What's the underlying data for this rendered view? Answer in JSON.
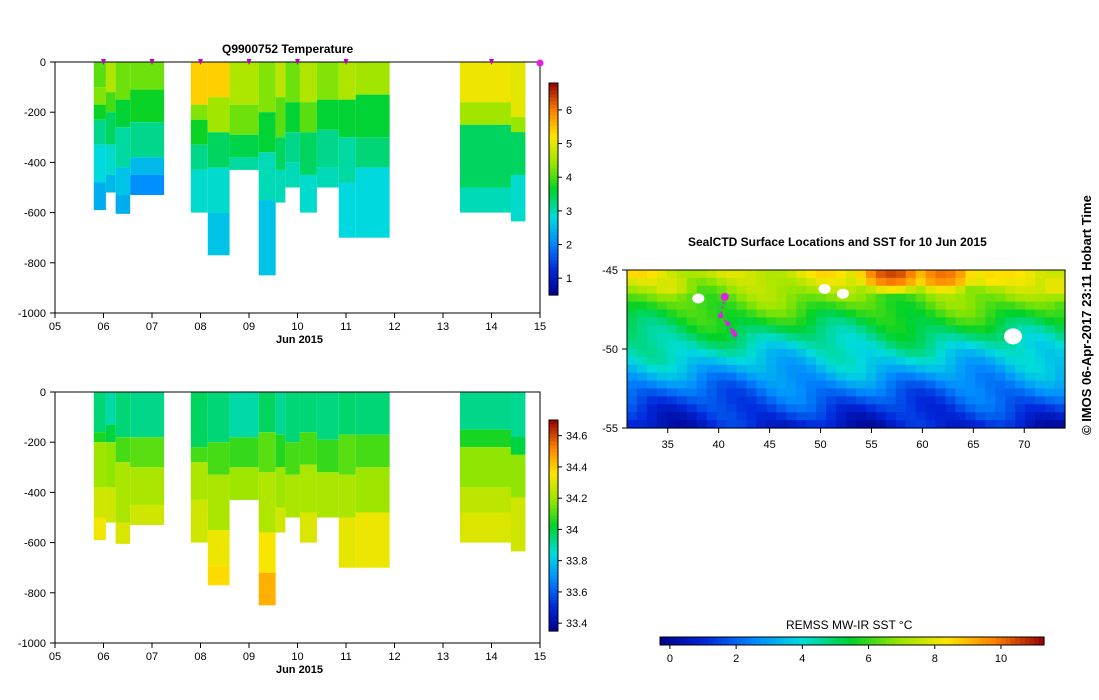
{
  "figure": {
    "credit": "© IMOS 06-Apr-2017 23:11 Hobart Time"
  },
  "chart_data": [
    {
      "type": "heatmap",
      "id": "temperature-section",
      "title": "Q9900752  Temperature",
      "xlabel": "Jun 2015",
      "ylabel": "",
      "x_ticks": [
        "05",
        "06",
        "07",
        "08",
        "09",
        "10",
        "11",
        "12",
        "13",
        "14",
        "15"
      ],
      "xlim": [
        5,
        15
      ],
      "ylim": [
        -1000,
        0
      ],
      "y_ticks": [
        0,
        -200,
        -400,
        -600,
        -800,
        -1000
      ],
      "colorbar": {
        "range": [
          0.5,
          6.8
        ],
        "ticks": [
          1,
          2,
          3,
          4,
          5,
          6
        ],
        "colormap": "jet"
      },
      "profile_markers": [
        6.0,
        7.0,
        8.0,
        9.0,
        10.0,
        11.0,
        14.0,
        15.0
      ],
      "profiles": [
        {
          "x0": 5.8,
          "x1": 6.05,
          "depth": 590,
          "bands": [
            [
              0,
              4.1
            ],
            [
              100,
              4.3
            ],
            [
              170,
              3.7
            ],
            [
              230,
              3.2
            ],
            [
              330,
              2.8
            ],
            [
              480,
              2.4
            ]
          ]
        },
        {
          "x0": 6.05,
          "x1": 6.25,
          "depth": 520,
          "bands": [
            [
              0,
              4.6
            ],
            [
              120,
              4.0
            ],
            [
              200,
              3.4
            ],
            [
              330,
              2.9
            ],
            [
              450,
              2.5
            ]
          ]
        },
        {
          "x0": 6.25,
          "x1": 6.55,
          "depth": 605,
          "bands": [
            [
              0,
              4.2
            ],
            [
              150,
              3.6
            ],
            [
              260,
              3.1
            ],
            [
              420,
              2.6
            ],
            [
              530,
              2.4
            ]
          ]
        },
        {
          "x0": 6.55,
          "x1": 7.25,
          "depth": 530,
          "bands": [
            [
              0,
              4.2
            ],
            [
              110,
              3.7
            ],
            [
              240,
              3.2
            ],
            [
              380,
              2.5
            ],
            [
              450,
              2.1
            ]
          ]
        },
        {
          "x0": 7.8,
          "x1": 8.15,
          "depth": 600,
          "bands": [
            [
              0,
              5.4
            ],
            [
              170,
              4.3
            ],
            [
              230,
              3.7
            ],
            [
              330,
              3.2
            ],
            [
              430,
              2.9
            ]
          ]
        },
        {
          "x0": 8.15,
          "x1": 8.6,
          "depth": 770,
          "bands": [
            [
              0,
              5.4
            ],
            [
              140,
              4.5
            ],
            [
              280,
              3.4
            ],
            [
              420,
              2.9
            ],
            [
              600,
              2.6
            ]
          ]
        },
        {
          "x0": 8.6,
          "x1": 9.2,
          "depth": 430,
          "bands": [
            [
              0,
              4.6
            ],
            [
              170,
              4.2
            ],
            [
              290,
              3.5
            ],
            [
              380,
              3.1
            ]
          ]
        },
        {
          "x0": 9.2,
          "x1": 9.55,
          "depth": 850,
          "bands": [
            [
              0,
              4.3
            ],
            [
              200,
              3.6
            ],
            [
              360,
              3.0
            ],
            [
              550,
              2.6
            ]
          ]
        },
        {
          "x0": 9.55,
          "x1": 9.75,
          "depth": 560,
          "bands": [
            [
              0,
              4.7
            ],
            [
              140,
              4.1
            ],
            [
              300,
              3.4
            ],
            [
              430,
              3.0
            ]
          ]
        },
        {
          "x0": 9.75,
          "x1": 10.05,
          "depth": 500,
          "bands": [
            [
              0,
              4.2
            ],
            [
              160,
              3.6
            ],
            [
              280,
              3.2
            ],
            [
              400,
              3.0
            ]
          ]
        },
        {
          "x0": 10.05,
          "x1": 10.4,
          "depth": 600,
          "bands": [
            [
              0,
              4.6
            ],
            [
              160,
              4.1
            ],
            [
              280,
              3.4
            ],
            [
              450,
              2.9
            ]
          ]
        },
        {
          "x0": 10.4,
          "x1": 10.85,
          "depth": 500,
          "bands": [
            [
              0,
              4.3
            ],
            [
              150,
              3.6
            ],
            [
              270,
              3.2
            ],
            [
              420,
              3.0
            ]
          ]
        },
        {
          "x0": 10.85,
          "x1": 11.2,
          "depth": 700,
          "bands": [
            [
              0,
              4.6
            ],
            [
              150,
              3.6
            ],
            [
              300,
              3.1
            ],
            [
              480,
              2.8
            ]
          ]
        },
        {
          "x0": 11.2,
          "x1": 11.9,
          "depth": 700,
          "bands": [
            [
              0,
              4.5
            ],
            [
              130,
              3.6
            ],
            [
              300,
              3.3
            ],
            [
              420,
              2.8
            ]
          ]
        },
        {
          "x0": 13.35,
          "x1": 14.65,
          "depth": 600,
          "bands": [
            [
              0,
              5.1
            ],
            [
              160,
              4.5
            ],
            [
              250,
              3.4
            ],
            [
              500,
              3.0
            ]
          ]
        },
        {
          "x0": 14.4,
          "x1": 14.7,
          "depth": 635,
          "bands": [
            [
              0,
              5.0
            ],
            [
              220,
              4.4
            ],
            [
              280,
              3.4
            ],
            [
              450,
              2.9
            ]
          ]
        }
      ]
    },
    {
      "type": "heatmap",
      "id": "salinity-section",
      "title": "",
      "xlabel": "Jun 2015",
      "ylabel": "",
      "x_ticks": [
        "05",
        "06",
        "07",
        "08",
        "09",
        "10",
        "11",
        "12",
        "13",
        "14",
        "15"
      ],
      "xlim": [
        5,
        15
      ],
      "ylim": [
        -1000,
        0
      ],
      "y_ticks": [
        0,
        -200,
        -400,
        -600,
        -800,
        -1000
      ],
      "colorbar": {
        "range": [
          33.35,
          34.7
        ],
        "ticks": [
          33.4,
          33.6,
          33.8,
          34,
          34.2,
          34.4,
          34.6
        ],
        "tick_labels": [
          "33.4",
          "33.6",
          "33.8",
          "34",
          "34.2",
          "34.4",
          "34.6"
        ],
        "colormap": "jet"
      },
      "profiles": [
        {
          "x0": 5.8,
          "x1": 6.05,
          "depth": 590,
          "bands": [
            [
              0,
              33.95
            ],
            [
              160,
              34.05
            ],
            [
              200,
              34.2
            ],
            [
              380,
              34.28
            ],
            [
              500,
              34.34
            ]
          ]
        },
        {
          "x0": 6.05,
          "x1": 6.25,
          "depth": 520,
          "bands": [
            [
              0,
              33.9
            ],
            [
              130,
              34.0
            ],
            [
              200,
              34.18
            ],
            [
              380,
              34.28
            ]
          ]
        },
        {
          "x0": 6.25,
          "x1": 6.55,
          "depth": 605,
          "bands": [
            [
              0,
              33.95
            ],
            [
              180,
              34.1
            ],
            [
              280,
              34.22
            ],
            [
              520,
              34.3
            ]
          ]
        },
        {
          "x0": 6.55,
          "x1": 7.25,
          "depth": 530,
          "bands": [
            [
              0,
              33.93
            ],
            [
              180,
              34.12
            ],
            [
              300,
              34.22
            ],
            [
              450,
              34.28
            ]
          ]
        },
        {
          "x0": 7.8,
          "x1": 8.15,
          "depth": 600,
          "bands": [
            [
              0,
              33.97
            ],
            [
              220,
              34.1
            ],
            [
              280,
              34.22
            ],
            [
              430,
              34.28
            ]
          ]
        },
        {
          "x0": 8.15,
          "x1": 8.6,
          "depth": 770,
          "bands": [
            [
              0,
              33.95
            ],
            [
              200,
              34.1
            ],
            [
              330,
              34.22
            ],
            [
              550,
              34.33
            ],
            [
              690,
              34.38
            ]
          ]
        },
        {
          "x0": 8.6,
          "x1": 9.2,
          "depth": 430,
          "bands": [
            [
              0,
              33.9
            ],
            [
              180,
              34.08
            ],
            [
              300,
              34.2
            ]
          ]
        },
        {
          "x0": 9.2,
          "x1": 9.55,
          "depth": 850,
          "bands": [
            [
              0,
              33.97
            ],
            [
              160,
              34.12
            ],
            [
              320,
              34.23
            ],
            [
              560,
              34.35
            ],
            [
              720,
              34.45
            ]
          ]
        },
        {
          "x0": 9.55,
          "x1": 9.75,
          "depth": 560,
          "bands": [
            [
              0,
              33.92
            ],
            [
              170,
              34.06
            ],
            [
              300,
              34.2
            ],
            [
              460,
              34.28
            ]
          ]
        },
        {
          "x0": 9.75,
          "x1": 10.05,
          "depth": 500,
          "bands": [
            [
              0,
              33.95
            ],
            [
              200,
              34.1
            ],
            [
              330,
              34.22
            ]
          ]
        },
        {
          "x0": 10.05,
          "x1": 10.4,
          "depth": 600,
          "bands": [
            [
              0,
              33.95
            ],
            [
              160,
              34.1
            ],
            [
              290,
              34.22
            ],
            [
              480,
              34.3
            ]
          ]
        },
        {
          "x0": 10.4,
          "x1": 10.85,
          "depth": 500,
          "bands": [
            [
              0,
              33.94
            ],
            [
              190,
              34.08
            ],
            [
              320,
              34.22
            ]
          ]
        },
        {
          "x0": 10.85,
          "x1": 11.2,
          "depth": 700,
          "bands": [
            [
              0,
              33.96
            ],
            [
              170,
              34.12
            ],
            [
              330,
              34.22
            ],
            [
              500,
              34.32
            ]
          ]
        },
        {
          "x0": 11.2,
          "x1": 11.9,
          "depth": 700,
          "bands": [
            [
              0,
              33.95
            ],
            [
              170,
              34.1
            ],
            [
              300,
              34.2
            ],
            [
              480,
              34.33
            ]
          ]
        },
        {
          "x0": 13.35,
          "x1": 14.65,
          "depth": 600,
          "bands": [
            [
              0,
              33.93
            ],
            [
              150,
              34.05
            ],
            [
              220,
              34.18
            ],
            [
              380,
              34.25
            ],
            [
              480,
              34.3
            ]
          ]
        },
        {
          "x0": 14.4,
          "x1": 14.7,
          "depth": 635,
          "bands": [
            [
              0,
              33.92
            ],
            [
              180,
              34.0
            ],
            [
              250,
              34.18
            ],
            [
              420,
              34.28
            ]
          ]
        }
      ]
    },
    {
      "type": "heatmap",
      "id": "sst-map",
      "title": "SealCTD Surface Locations and SST for 10 Jun 2015",
      "xlabel": "",
      "ylabel": "",
      "xlim": [
        31,
        74
      ],
      "ylim": [
        -55,
        -45
      ],
      "x_ticks": [
        35,
        40,
        45,
        50,
        55,
        60,
        65,
        70
      ],
      "y_ticks": [
        -45,
        -50,
        -55
      ],
      "colorbar": {
        "label": "REMSS MW-IR SST °C",
        "range": [
          -0.3,
          11.3
        ],
        "ticks": [
          0,
          2,
          4,
          6,
          8,
          10
        ],
        "colormap": "jet"
      },
      "sst_gradient": {
        "lats": [
          -45,
          -46.5,
          -48,
          -49.5,
          -51,
          -52.5,
          -54,
          -55
        ],
        "values": [
          8.0,
          6.8,
          5.7,
          4.5,
          3.5,
          2.3,
          1.3,
          0.7
        ]
      },
      "warm_patches": [
        {
          "lon": 57,
          "lat": -45.2,
          "sst": 10.5
        },
        {
          "lon": 62,
          "lat": -45.3,
          "sst": 10.0
        },
        {
          "lon": 67,
          "lat": -45.4,
          "sst": 8.6
        },
        {
          "lon": 35,
          "lat": -46.0,
          "sst": 8.0
        },
        {
          "lon": 73,
          "lat": -46.0,
          "sst": 8.2
        }
      ],
      "land_masks": [
        {
          "lon": 38.0,
          "lat": -46.8
        },
        {
          "lon": 50.4,
          "lat": -46.2
        },
        {
          "lon": 52.2,
          "lat": -46.5
        },
        {
          "lon": 68.9,
          "lat": -49.2
        }
      ],
      "seal_track": [
        {
          "lon": 40.6,
          "lat": -46.7
        },
        {
          "lon": 40.2,
          "lat": -47.9
        },
        {
          "lon": 40.9,
          "lat": -48.4
        },
        {
          "lon": 41.4,
          "lat": -48.9
        },
        {
          "lon": 41.6,
          "lat": -49.1
        }
      ]
    }
  ]
}
